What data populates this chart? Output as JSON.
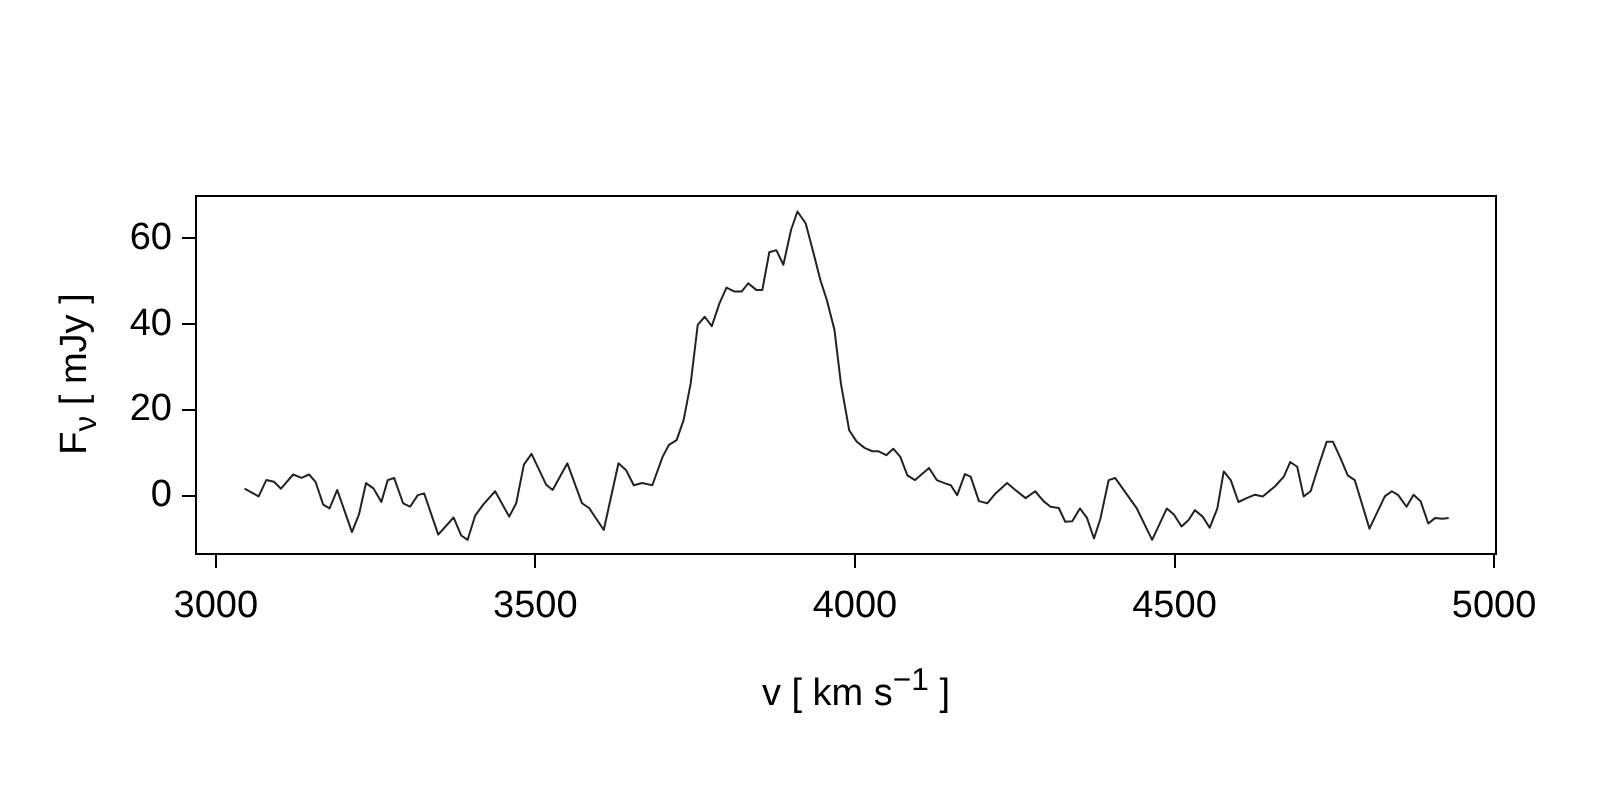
{
  "chart_data": {
    "type": "line",
    "xlabel": "v [ km s$^{−1}$ ]",
    "ylabel": "F$_{ν}$ [ mJy ]",
    "xlim": [
      2969,
      5003
    ],
    "xticks": [
      3000,
      3500,
      4000,
      4500,
      5000
    ],
    "ylim": [
      -13.5,
      69.8
    ],
    "yticks": [
      0,
      20,
      40,
      60
    ],
    "grid": false,
    "legend": false,
    "marker": "none",
    "line_style": "solid",
    "series": [
      {
        "color": "#222222",
        "x": [
          3045,
          3067,
          3079,
          3091,
          3102,
          3121,
          3134,
          3146,
          3156,
          3168,
          3178,
          3190,
          3201,
          3213,
          3224,
          3235,
          3247,
          3259,
          3269,
          3279,
          3293,
          3304,
          3316,
          3326,
          3348,
          3372,
          3384,
          3394,
          3406,
          3419,
          3437,
          3459,
          3470,
          3482,
          3494,
          3517,
          3527,
          3550,
          3573,
          3584,
          3607,
          3630,
          3642,
          3654,
          3667,
          3683,
          3699,
          3709,
          3721,
          3732,
          3743,
          3754,
          3765,
          3776,
          3788,
          3799,
          3811,
          3823,
          3833,
          3846,
          3855,
          3866,
          3877,
          3888,
          3900,
          3910,
          3923,
          3934,
          3946,
          3956,
          3968,
          3978,
          3991,
          4003,
          4015,
          4027,
          4037,
          4049,
          4060,
          4071,
          4082,
          4094,
          4116,
          4128,
          4140,
          4150,
          4160,
          4172,
          4181,
          4194,
          4207,
          4220,
          4238,
          4251,
          4267,
          4282,
          4295,
          4306,
          4319,
          4329,
          4340,
          4352,
          4363,
          4374,
          4384,
          4397,
          4407,
          4441,
          4465,
          4488,
          4499,
          4511,
          4522,
          4532,
          4544,
          4555,
          4567,
          4577,
          4588,
          4600,
          4613,
          4626,
          4638,
          4657,
          4671,
          4681,
          4692,
          4702,
          4713,
          4725,
          4738,
          4748,
          4760,
          4771,
          4782,
          4805,
          4829,
          4840,
          4850,
          4863,
          4874,
          4885,
          4897,
          4908,
          4919,
          4929
        ],
        "values": [
          1.7,
          -0.1,
          3.7,
          3.3,
          1.7,
          5.0,
          4.2,
          5.0,
          3.3,
          -2.0,
          -2.9,
          1.4,
          -3.3,
          -8.4,
          -4.3,
          3.0,
          1.7,
          -1.4,
          3.7,
          4.2,
          -1.7,
          -2.5,
          0.2,
          0.6,
          -9.0,
          -5.0,
          -9.2,
          -10.2,
          -4.5,
          -1.9,
          1.1,
          -4.8,
          -1.7,
          7.3,
          9.8,
          2.6,
          1.4,
          7.6,
          -1.7,
          -2.8,
          -7.9,
          7.6,
          6.0,
          2.5,
          3.0,
          2.5,
          9.1,
          11.9,
          13.0,
          17.7,
          26.2,
          39.8,
          41.7,
          39.5,
          44.8,
          48.5,
          47.6,
          47.6,
          49.5,
          47.9,
          47.9,
          56.7,
          57.2,
          53.8,
          61.9,
          66.2,
          63.4,
          57.2,
          50.2,
          45.6,
          38.6,
          26.2,
          15.3,
          12.6,
          11.2,
          10.4,
          10.4,
          9.5,
          11.0,
          9.1,
          4.8,
          3.7,
          6.5,
          3.7,
          3.0,
          2.5,
          0.2,
          5.1,
          4.5,
          -1.2,
          -1.7,
          0.6,
          3.0,
          1.4,
          -0.5,
          1.1,
          -1.2,
          -2.5,
          -2.8,
          -6.0,
          -5.9,
          -2.9,
          -5.1,
          -9.9,
          -5.3,
          3.7,
          4.2,
          -2.9,
          -10.2,
          -2.9,
          -4.3,
          -7.1,
          -5.6,
          -3.3,
          -4.8,
          -7.4,
          -2.9,
          5.7,
          3.7,
          -1.4,
          -0.5,
          0.3,
          -0.1,
          2.2,
          4.5,
          7.9,
          6.8,
          -0.1,
          1.1,
          6.8,
          12.6,
          12.6,
          8.7,
          4.8,
          3.7,
          -7.6,
          -0.1,
          1.1,
          0.2,
          -2.5,
          0.3,
          -1.2,
          -6.4,
          -5.1,
          -5.3,
          -5.1
        ]
      }
    ]
  }
}
